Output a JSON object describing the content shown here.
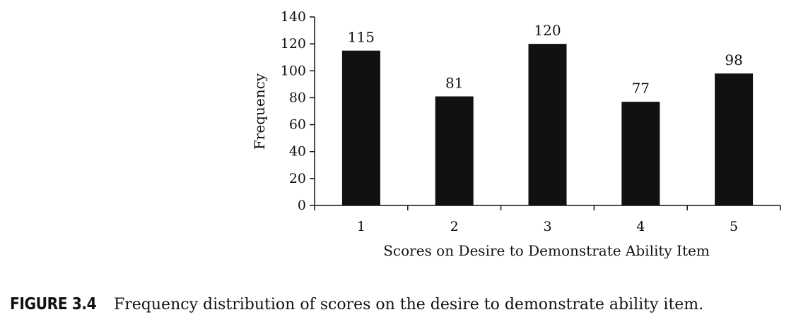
{
  "chart_data": {
    "type": "bar",
    "categories": [
      "1",
      "2",
      "3",
      "4",
      "5"
    ],
    "values": [
      115,
      81,
      120,
      77,
      98
    ],
    "data_labels": [
      "115",
      "81",
      "120",
      "77",
      "98"
    ],
    "xlabel": "Scores on Desire to Demonstrate Ability Item",
    "ylabel": "Frequency",
    "ylim": [
      0,
      140
    ],
    "yticks": [
      0,
      20,
      40,
      60,
      80,
      100,
      120,
      140
    ],
    "grid": false,
    "bar_color": "#111111"
  },
  "caption": {
    "tag": "FIGURE 3.4",
    "text": "Frequency distribution of scores on the desire to demonstrate ability item."
  }
}
